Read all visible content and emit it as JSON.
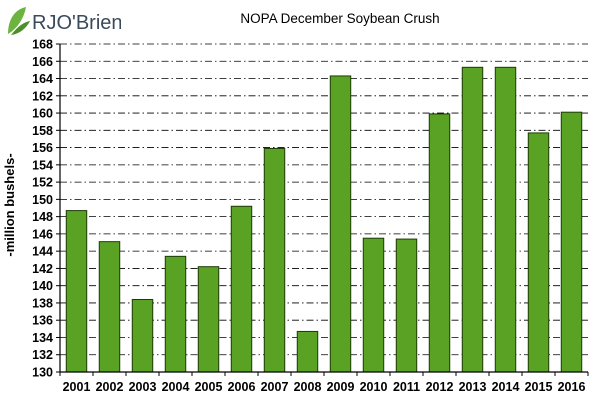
{
  "logo": {
    "text": "RJO'Brien",
    "icon": "rjo-leaf-icon",
    "colors": {
      "dark": "#3a4a5a",
      "green": "#6cb33f"
    }
  },
  "colors": {
    "bar_fill": "#5aa223",
    "bar_stroke": "#1e3a08",
    "grid": "#000000"
  },
  "chart_data": {
    "type": "bar",
    "title": "NOPA December Soybean Crush",
    "xlabel": "",
    "ylabel": "-million bushels-",
    "categories": [
      "2001",
      "2002",
      "2003",
      "2004",
      "2005",
      "2006",
      "2007",
      "2008",
      "2009",
      "2010",
      "2011",
      "2012",
      "2013",
      "2014",
      "2015",
      "2016"
    ],
    "values": [
      148.7,
      145.1,
      138.4,
      143.4,
      142.2,
      149.2,
      155.9,
      134.7,
      164.3,
      145.5,
      145.4,
      159.9,
      165.3,
      165.3,
      157.7,
      160.1
    ],
    "ylim": [
      130,
      168
    ],
    "yticks": [
      130,
      132,
      134,
      136,
      138,
      140,
      142,
      144,
      146,
      148,
      150,
      152,
      154,
      156,
      158,
      160,
      162,
      164,
      166,
      168
    ],
    "grid": true,
    "grid_style": "dash-dot",
    "legend": "none"
  }
}
